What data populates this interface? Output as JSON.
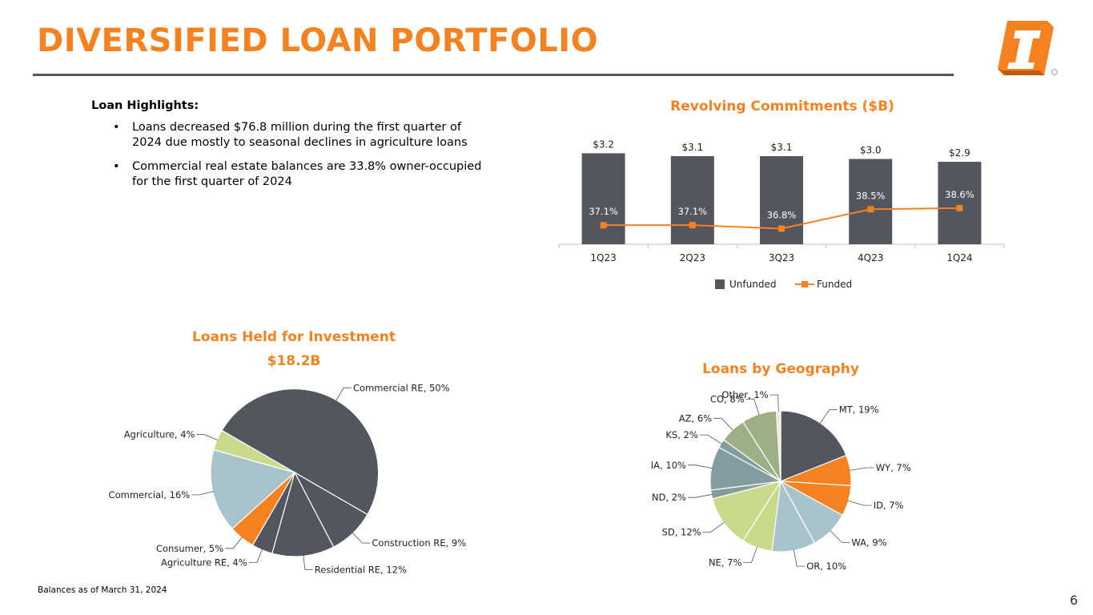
{
  "page": {
    "title": "DIVERSIFIED LOAN PORTFOLIO",
    "footnote": "Balances as of March 31, 2024",
    "page_number": "6"
  },
  "highlights": {
    "heading": "Loan Highlights:",
    "items": [
      "Loans decreased $76.8 million during the first quarter of 2024 due mostly to seasonal declines in agriculture loans",
      "Commercial real estate balances are 33.8% owner-occupied for the first quarter of 2024"
    ]
  },
  "colors": {
    "orange": "#F58220",
    "charcoal": "#54565F",
    "rule": "#54565F"
  },
  "chart_data": [
    {
      "id": "revolving",
      "type": "bar",
      "title": "Revolving Commitments ($B)",
      "categories": [
        "1Q23",
        "2Q23",
        "3Q23",
        "4Q23",
        "1Q24"
      ],
      "series": [
        {
          "name": "Unfunded",
          "type": "bar",
          "color": "#54565F",
          "values": [
            3.2,
            3.1,
            3.1,
            3.0,
            2.9
          ],
          "labels": [
            "$3.2",
            "$3.1",
            "$3.1",
            "$3.0",
            "$2.9"
          ]
        },
        {
          "name": "Funded",
          "type": "line",
          "color": "#F58220",
          "values": [
            37.1,
            37.1,
            36.8,
            38.5,
            38.6
          ],
          "labels": [
            "37.1%",
            "37.1%",
            "36.8%",
            "38.5%",
            "38.6%"
          ]
        }
      ],
      "legend_position": "bottom"
    },
    {
      "id": "held",
      "type": "pie",
      "title": "Loans Held for Investment",
      "subtitle": "$18.2B",
      "slices": [
        {
          "label": "Commercial RE, 50%",
          "value": 50,
          "color": "#54565F"
        },
        {
          "label": "Construction RE, 9%",
          "value": 9,
          "color": "#54565F"
        },
        {
          "label": "Residential RE, 12%",
          "value": 12,
          "color": "#54565F"
        },
        {
          "label": "Agriculture RE, 4%",
          "value": 4,
          "color": "#54565F"
        },
        {
          "label": "Consumer, 5%",
          "value": 5,
          "color": "#F58220"
        },
        {
          "label": "Commercial, 16%",
          "value": 16,
          "color": "#A9C3CB"
        },
        {
          "label": "Agriculture, 4%",
          "value": 4,
          "color": "#C7DB8B"
        }
      ]
    },
    {
      "id": "geo",
      "type": "pie",
      "title": "Loans by Geography",
      "slices": [
        {
          "label": "MT, 19%",
          "value": 19,
          "color": "#54565F"
        },
        {
          "label": "WY, 7%",
          "value": 7,
          "color": "#F58220"
        },
        {
          "label": "ID, 7%",
          "value": 7,
          "color": "#F58220"
        },
        {
          "label": "WA, 9%",
          "value": 9,
          "color": "#A9C3CB"
        },
        {
          "label": "OR, 10%",
          "value": 10,
          "color": "#A9C3CB"
        },
        {
          "label": "NE, 7%",
          "value": 7,
          "color": "#C7DB8B"
        },
        {
          "label": "SD, 12%",
          "value": 12,
          "color": "#C7DB8B"
        },
        {
          "label": "ND, 2%",
          "value": 2,
          "color": "#849CA0"
        },
        {
          "label": "IA, 10%",
          "value": 10,
          "color": "#849CA0"
        },
        {
          "label": "KS, 2%",
          "value": 2,
          "color": "#849CA0"
        },
        {
          "label": "AZ, 6%",
          "value": 6,
          "color": "#9DAF85"
        },
        {
          "label": "CO, 8%",
          "value": 8,
          "color": "#9DAF85"
        },
        {
          "label": "Other, 1%",
          "value": 1,
          "color": "#EDEAD5"
        }
      ]
    }
  ]
}
